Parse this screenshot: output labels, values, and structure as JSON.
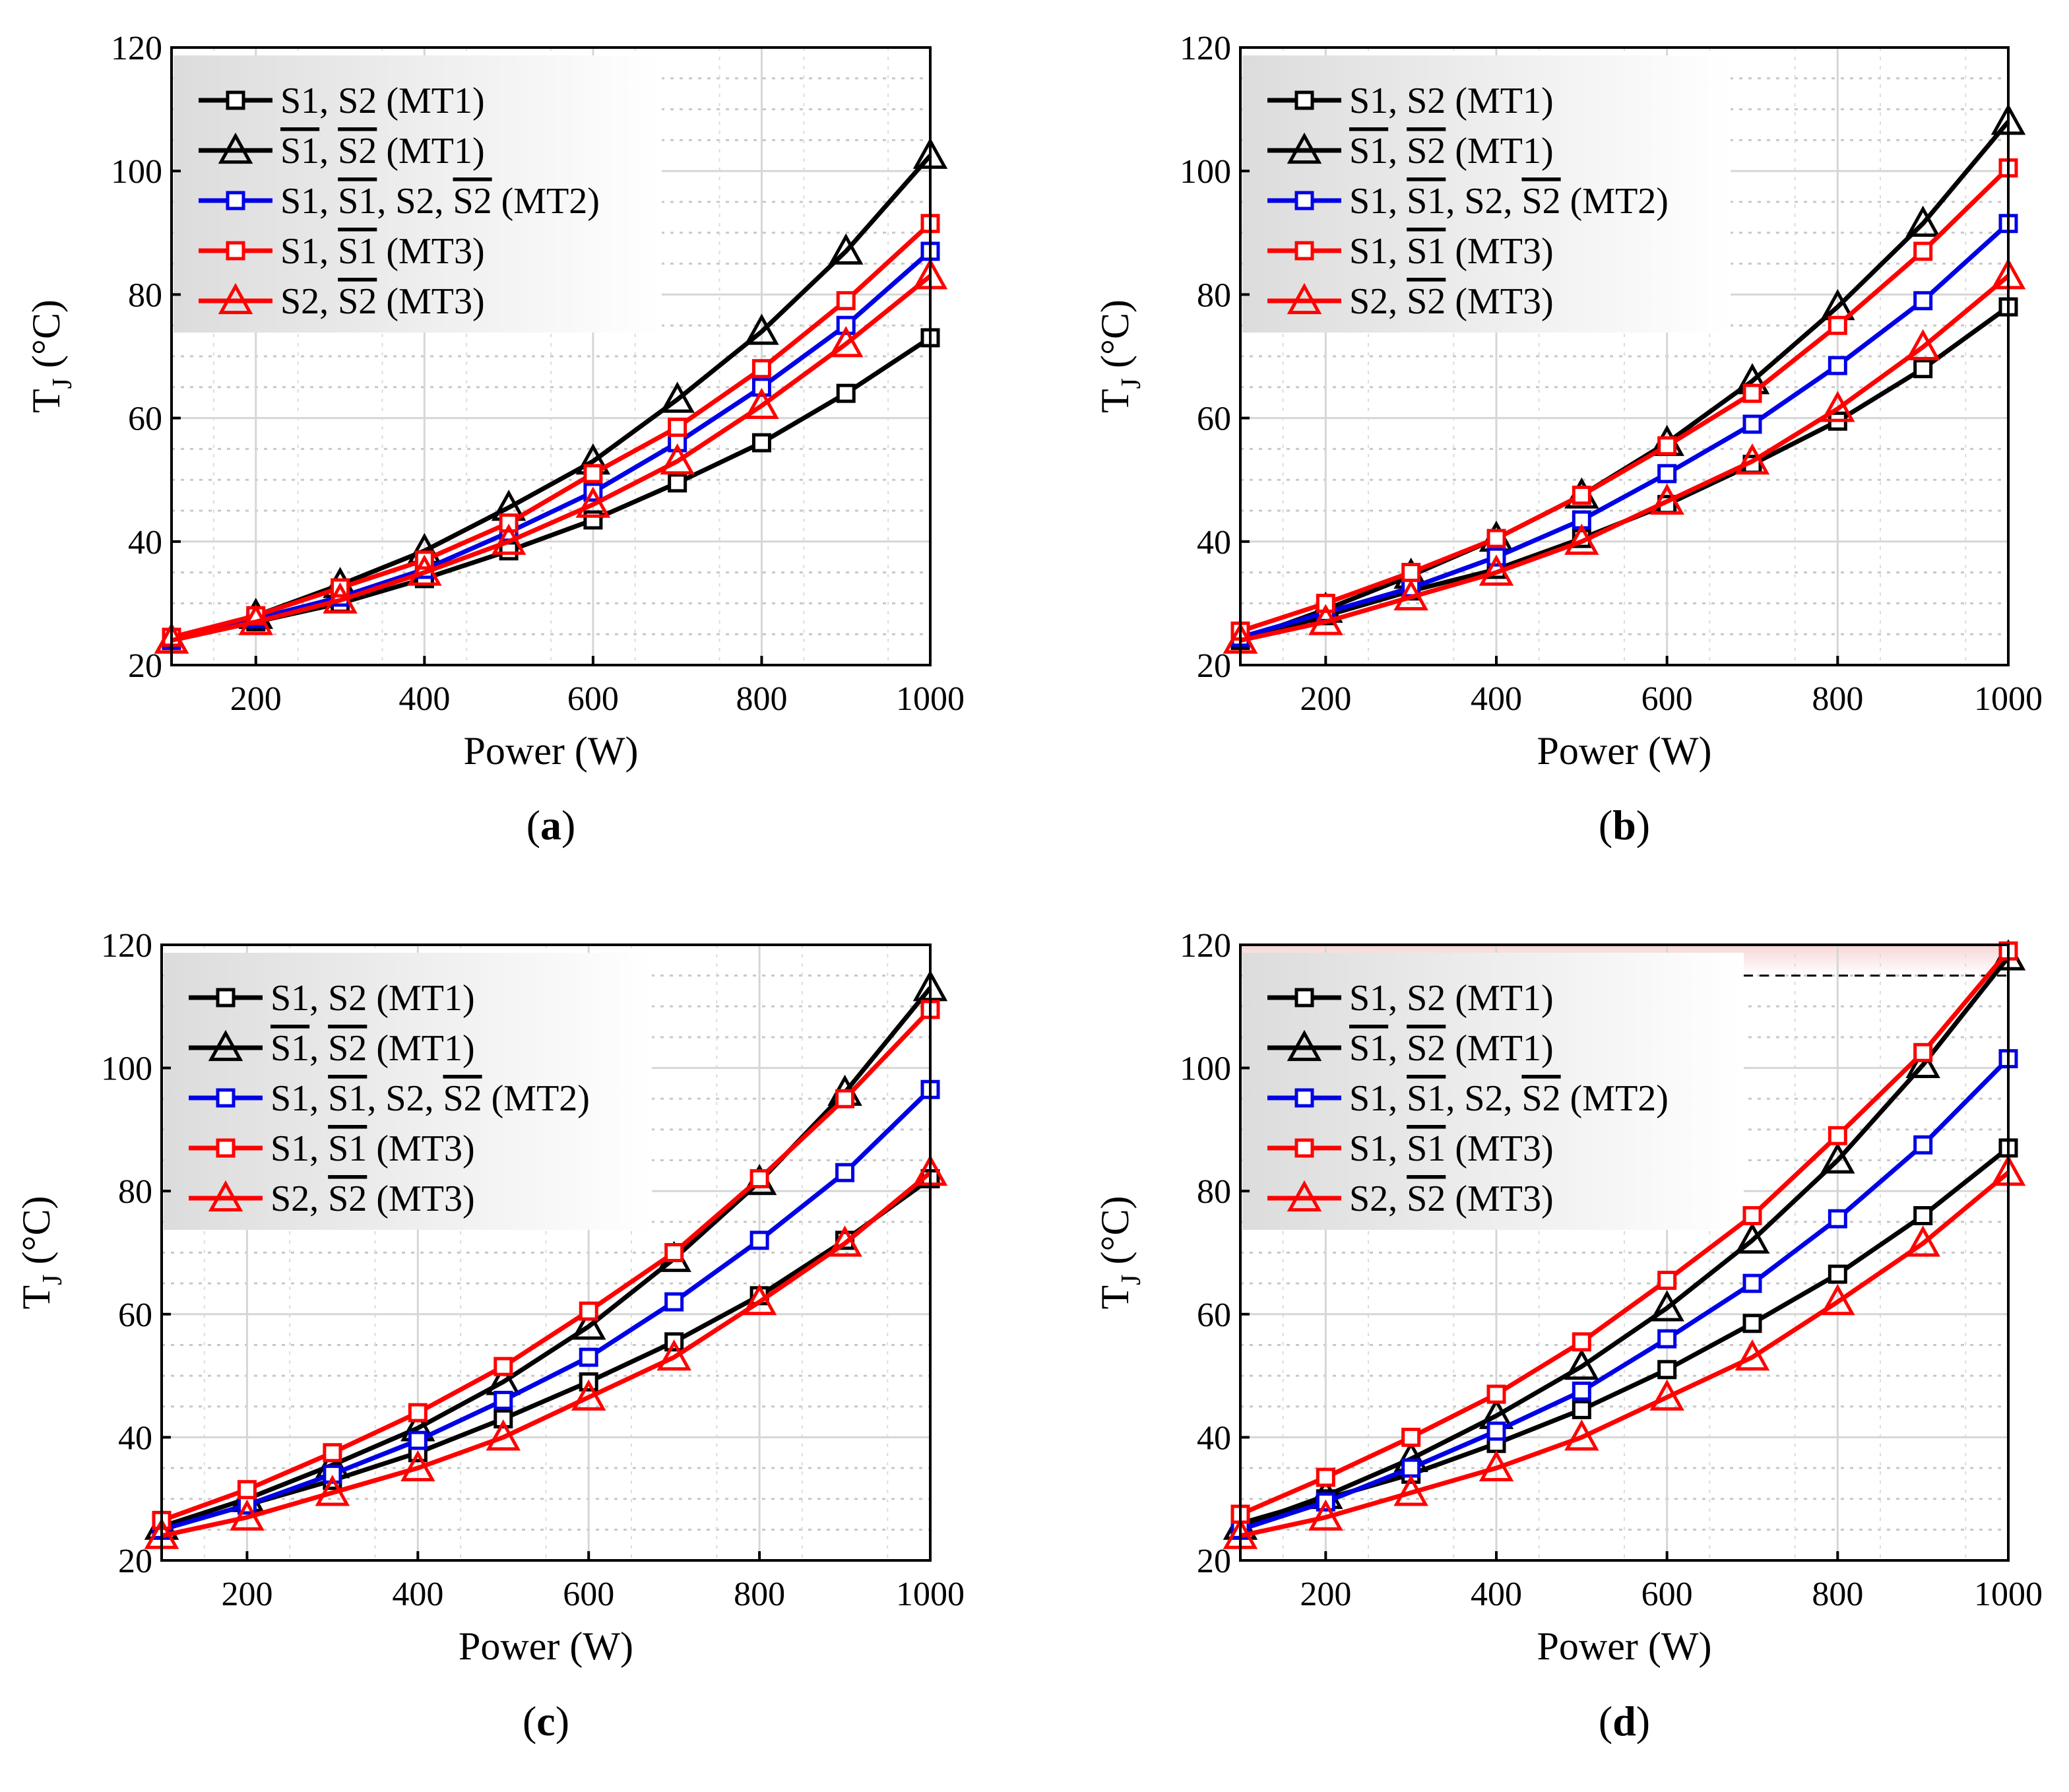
{
  "panels_common": {
    "xlabel": "Power (W)",
    "ylabel_main": "T",
    "ylabel_sub": "J",
    "ylabel_unit": " (°C)",
    "xlim": [
      100,
      1000
    ],
    "ylim": [
      20,
      120
    ],
    "xticks": [
      200,
      400,
      600,
      800,
      1000
    ],
    "yticks": [
      20,
      40,
      60,
      80,
      100,
      120
    ]
  },
  "legend_entries": [
    {
      "id": "s1s2_mt1",
      "color": "#000000",
      "marker": "square",
      "parts": [
        {
          "t": "S1",
          "over": false
        },
        {
          "t": ", ",
          "over": false
        },
        {
          "t": "S2",
          "over": false
        },
        {
          "t": " (MT1)",
          "over": false
        }
      ]
    },
    {
      "id": "s1bs2b_mt1",
      "color": "#000000",
      "marker": "triangle",
      "parts": [
        {
          "t": "S1",
          "over": true
        },
        {
          "t": ", ",
          "over": false
        },
        {
          "t": "S2",
          "over": true
        },
        {
          "t": " (MT1)",
          "over": false
        }
      ]
    },
    {
      "id": "all_mt2",
      "color": "#0000e6",
      "marker": "square",
      "parts": [
        {
          "t": "S1, ",
          "over": false
        },
        {
          "t": "S1",
          "over": true
        },
        {
          "t": ", S2, ",
          "over": false
        },
        {
          "t": "S2",
          "over": true
        },
        {
          "t": " (MT2)",
          "over": false
        }
      ]
    },
    {
      "id": "s1_mt3",
      "color": "#ff0000",
      "marker": "square",
      "parts": [
        {
          "t": "S1, ",
          "over": false
        },
        {
          "t": "S1",
          "over": true
        },
        {
          "t": " (MT3)",
          "over": false
        }
      ]
    },
    {
      "id": "s2_mt3",
      "color": "#ff0000",
      "marker": "triangle",
      "parts": [
        {
          "t": "S2, ",
          "over": false
        },
        {
          "t": "S2",
          "over": true
        },
        {
          "t": " (MT3)",
          "over": false
        }
      ]
    }
  ],
  "chart_data": [
    {
      "type": "line",
      "caption": "(a)",
      "x": [
        100,
        200,
        300,
        400,
        500,
        600,
        700,
        800,
        900,
        1000
      ],
      "series": [
        {
          "name": "S1, S2 (MT1)",
          "values": [
            24,
            27,
            30,
            34,
            38.5,
            43.5,
            49.5,
            56,
            64,
            73
          ]
        },
        {
          "name": "S1, S2 (MT1) overline",
          "values": [
            24,
            28,
            33,
            38.5,
            45.5,
            53,
            63,
            74,
            87,
            102.5
          ]
        },
        {
          "name": "S1, S1, S2, S2 (MT2)",
          "values": [
            24,
            27.5,
            31,
            35.5,
            41.5,
            48,
            56,
            65,
            75,
            87
          ]
        },
        {
          "name": "S1, S1 (MT3)",
          "values": [
            24.5,
            28,
            32.5,
            37,
            43,
            51,
            58.5,
            68,
            79,
            91.5
          ]
        },
        {
          "name": "S2, S2 (MT3)",
          "values": [
            24,
            27,
            30.5,
            35,
            40,
            46,
            53,
            62,
            72,
            83
          ]
        }
      ]
    },
    {
      "type": "line",
      "caption": "(b)",
      "x": [
        100,
        200,
        300,
        400,
        500,
        600,
        700,
        800,
        900,
        1000
      ],
      "series": [
        {
          "name": "S1, S2 (MT1)",
          "values": [
            24,
            28,
            32,
            35.5,
            40.5,
            46,
            52.5,
            59.5,
            68,
            78
          ]
        },
        {
          "name": "S1, S2 (MT1) overline",
          "values": [
            24,
            29,
            34.5,
            40.5,
            47.5,
            56,
            66,
            78,
            91.5,
            108
          ]
        },
        {
          "name": "S1, S1, S2, S2 (MT2)",
          "values": [
            24.5,
            28.5,
            32.5,
            37.5,
            43.5,
            51,
            59,
            68.5,
            79,
            91.5
          ]
        },
        {
          "name": "S1, S1 (MT3)",
          "values": [
            25.5,
            30,
            35,
            40.5,
            47.5,
            55.5,
            64,
            75,
            87,
            100.5
          ]
        },
        {
          "name": "S2, S2 (MT3)",
          "values": [
            24,
            27,
            31,
            35,
            40,
            46.5,
            53,
            61.5,
            71.5,
            83
          ]
        }
      ]
    },
    {
      "type": "line",
      "caption": "(c)",
      "x": [
        100,
        200,
        300,
        400,
        500,
        600,
        700,
        800,
        900,
        1000
      ],
      "series": [
        {
          "name": "S1, S2 (MT1)",
          "values": [
            25,
            29,
            33,
            37.5,
            43,
            49,
            55.5,
            63,
            72,
            82
          ]
        },
        {
          "name": "S1, S2 (MT1) overline",
          "values": [
            25.5,
            30,
            35.5,
            41.5,
            49,
            58,
            69,
            81.5,
            96,
            113
          ]
        },
        {
          "name": "S1, S1, S2, S2 (MT2)",
          "values": [
            25,
            29,
            34,
            39.5,
            46,
            53,
            62,
            72,
            83,
            96.5
          ]
        },
        {
          "name": "S1, S1 (MT3)",
          "values": [
            26.5,
            31.5,
            37.5,
            44,
            51.5,
            60.5,
            70,
            82,
            95,
            109.5
          ]
        },
        {
          "name": "S2, S2 (MT3)",
          "values": [
            24,
            27,
            31,
            35,
            40,
            46.5,
            53,
            62,
            71.5,
            83
          ]
        }
      ]
    },
    {
      "type": "line",
      "caption": "(d)",
      "x": [
        100,
        200,
        300,
        400,
        500,
        600,
        700,
        800,
        900,
        1000
      ],
      "reference_line_y": 115,
      "series": [
        {
          "name": "S1, S2 (MT1)",
          "values": [
            26,
            30,
            34,
            39,
            44.5,
            51,
            58.5,
            66.5,
            76,
            87
          ]
        },
        {
          "name": "S1, S2 (MT1) overline",
          "values": [
            25.5,
            30.5,
            36.5,
            43.5,
            51.5,
            61,
            72,
            85,
            100.5,
            118
          ]
        },
        {
          "name": "S1, S1, S2, S2 (MT2)",
          "values": [
            25,
            29.5,
            35,
            41,
            47.5,
            56,
            65,
            75.5,
            87.5,
            101.5
          ]
        },
        {
          "name": "S1, S1 (MT3)",
          "values": [
            27.5,
            33.5,
            40,
            47,
            55.5,
            65.5,
            76,
            89,
            102.5,
            119
          ]
        },
        {
          "name": "S2, S2 (MT3)",
          "values": [
            24,
            27,
            31,
            35,
            40,
            46.5,
            53,
            62,
            71.5,
            83
          ]
        }
      ]
    }
  ]
}
